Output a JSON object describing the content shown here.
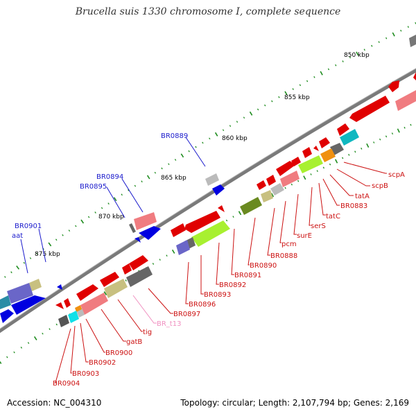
{
  "title": "Brucella suis 1330 chromosome I, complete sequence",
  "footer": {
    "accession": "Accession: NC_004310",
    "stats": "Topology: circular; Length: 2,107,794 bp; Genes: 2,169"
  },
  "colors": {
    "backbone": "#7a7a7a",
    "label_blue": "#1a1acc",
    "label_red": "#cc1111",
    "label_pink": "#f08fc0",
    "tick_green": "#1e8c1e"
  },
  "kbp_labels": [
    "850 kbp",
    "855 kbp",
    "860 kbp",
    "865 kbp",
    "870 kbp",
    "875 kbp"
  ],
  "labels_top": [
    "BR0889",
    "BR0894",
    "BR0895",
    "BR0901",
    "aat"
  ],
  "labels_bottom": [
    "scpA",
    "scpB",
    "tatA",
    "BR0883",
    "tatC",
    "serS",
    "surE",
    "pcm",
    "BR0888",
    "BR0890",
    "BR0891",
    "BR0892",
    "BR0893",
    "BR0896",
    "BR0897",
    "BR_t13",
    "tig",
    "gatB",
    "BR0900",
    "BR0902",
    "BR0903",
    "BR0904"
  ]
}
